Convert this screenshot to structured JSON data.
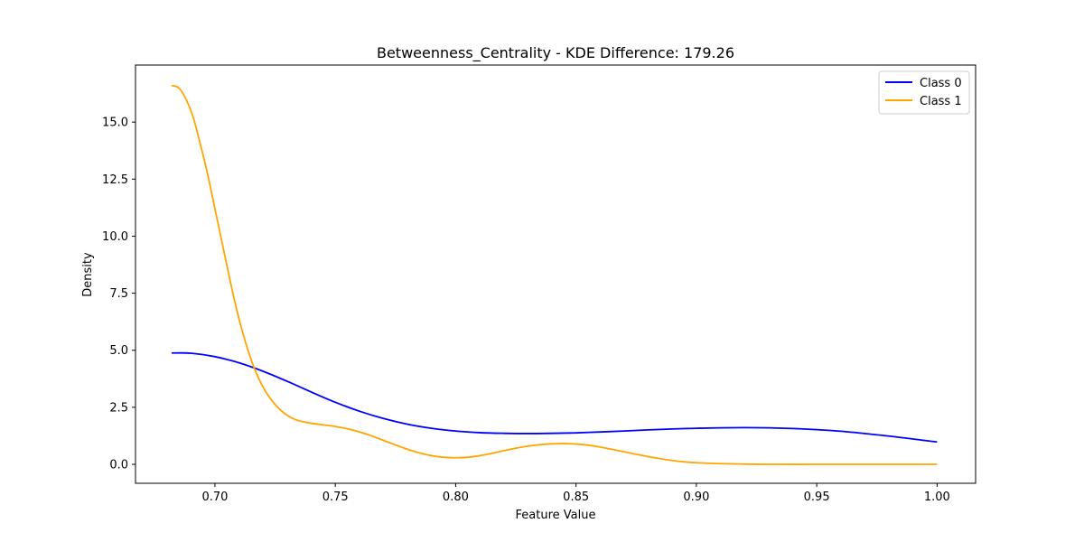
{
  "chart_data": {
    "type": "line",
    "title": "Betweenness_Centrality - KDE Difference: 179.26",
    "xlabel": "Feature Value",
    "ylabel": "Density",
    "xlim": [
      0.667,
      1.016
    ],
    "ylim": [
      -0.83,
      17.5
    ],
    "xticks": [
      0.7,
      0.75,
      0.8,
      0.85,
      0.9,
      0.95,
      1.0
    ],
    "xtick_labels": [
      "0.70",
      "0.75",
      "0.80",
      "0.85",
      "0.90",
      "0.95",
      "1.00"
    ],
    "yticks": [
      0.0,
      2.5,
      5.0,
      7.5,
      10.0,
      12.5,
      15.0
    ],
    "ytick_labels": [
      "0.0",
      "2.5",
      "5.0",
      "7.5",
      "10.0",
      "12.5",
      "15.0"
    ],
    "grid": false,
    "legend_position": "top-right",
    "series": [
      {
        "name": "Class 0",
        "color": "#0000ff",
        "x": [
          0.682,
          0.69,
          0.7,
          0.71,
          0.72,
          0.73,
          0.74,
          0.75,
          0.76,
          0.77,
          0.78,
          0.79,
          0.8,
          0.81,
          0.82,
          0.83,
          0.84,
          0.85,
          0.86,
          0.87,
          0.88,
          0.89,
          0.9,
          0.91,
          0.92,
          0.93,
          0.94,
          0.95,
          0.96,
          0.97,
          0.98,
          0.99,
          1.0
        ],
        "y": [
          4.88,
          4.87,
          4.72,
          4.45,
          4.08,
          3.64,
          3.17,
          2.72,
          2.33,
          2.01,
          1.76,
          1.58,
          1.46,
          1.39,
          1.36,
          1.35,
          1.36,
          1.38,
          1.42,
          1.46,
          1.51,
          1.55,
          1.58,
          1.6,
          1.61,
          1.6,
          1.57,
          1.52,
          1.45,
          1.35,
          1.24,
          1.11,
          0.98
        ]
      },
      {
        "name": "Class 1",
        "color": "#ffa500",
        "x": [
          0.682,
          0.685,
          0.688,
          0.691,
          0.694,
          0.697,
          0.7,
          0.703,
          0.706,
          0.709,
          0.712,
          0.715,
          0.718,
          0.721,
          0.724,
          0.727,
          0.73,
          0.733,
          0.736,
          0.74,
          0.745,
          0.75,
          0.755,
          0.76,
          0.765,
          0.77,
          0.775,
          0.78,
          0.785,
          0.79,
          0.795,
          0.8,
          0.805,
          0.81,
          0.815,
          0.82,
          0.825,
          0.83,
          0.835,
          0.84,
          0.845,
          0.85,
          0.855,
          0.86,
          0.865,
          0.87,
          0.875,
          0.88,
          0.885,
          0.89,
          0.895,
          0.9,
          0.91,
          0.92,
          0.93,
          0.95,
          0.97,
          1.0
        ],
        "y": [
          16.6,
          16.5,
          16.0,
          15.2,
          14.0,
          12.7,
          11.2,
          9.7,
          8.2,
          6.8,
          5.6,
          4.6,
          3.8,
          3.2,
          2.75,
          2.4,
          2.15,
          1.98,
          1.88,
          1.8,
          1.73,
          1.66,
          1.56,
          1.42,
          1.25,
          1.05,
          0.85,
          0.66,
          0.5,
          0.38,
          0.31,
          0.29,
          0.31,
          0.38,
          0.48,
          0.6,
          0.71,
          0.8,
          0.86,
          0.9,
          0.91,
          0.89,
          0.84,
          0.76,
          0.66,
          0.55,
          0.44,
          0.34,
          0.25,
          0.17,
          0.11,
          0.07,
          0.03,
          0.01,
          0.0,
          0.0,
          0.0,
          0.0
        ]
      }
    ]
  }
}
